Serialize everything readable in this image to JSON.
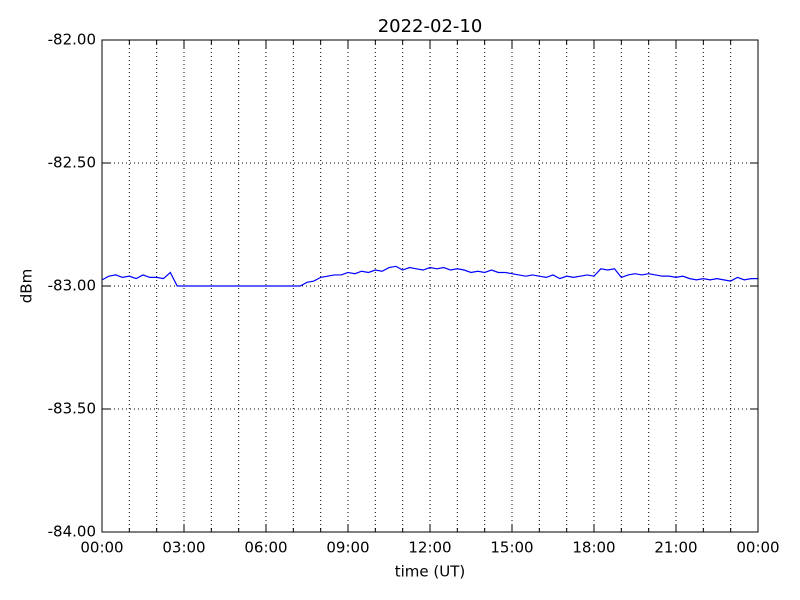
{
  "chart_data": {
    "type": "line",
    "title": "2022-02-10",
    "xlabel": "time (UT)",
    "ylabel": "dBm",
    "xlim": [
      0,
      24
    ],
    "ylim": [
      -84,
      -82
    ],
    "xticks": [
      {
        "value": 0,
        "label": "00:00"
      },
      {
        "value": 3,
        "label": "03:00"
      },
      {
        "value": 6,
        "label": "06:00"
      },
      {
        "value": 9,
        "label": "09:00"
      },
      {
        "value": 12,
        "label": "12:00"
      },
      {
        "value": 15,
        "label": "15:00"
      },
      {
        "value": 18,
        "label": "18:00"
      },
      {
        "value": 21,
        "label": "21:00"
      },
      {
        "value": 24,
        "label": "00:00"
      }
    ],
    "x_minor_ticks": [
      1,
      2,
      4,
      5,
      7,
      8,
      10,
      11,
      13,
      14,
      16,
      17,
      19,
      20,
      22,
      23
    ],
    "yticks": [
      {
        "value": -84,
        "label": "-84.00"
      },
      {
        "value": -83.5,
        "label": "-83.50"
      },
      {
        "value": -83,
        "label": "-83.00"
      },
      {
        "value": -82.5,
        "label": "-82.50"
      },
      {
        "value": -82,
        "label": "-82.00"
      }
    ],
    "grid": true,
    "series": [
      {
        "color": "#0000ff",
        "x": [
          0,
          0.25,
          0.5,
          0.75,
          1,
          1.25,
          1.5,
          1.75,
          2,
          2.25,
          2.5,
          2.75,
          3,
          3.25,
          3.5,
          3.75,
          4,
          4.25,
          4.5,
          4.75,
          5,
          5.25,
          5.5,
          5.75,
          6,
          6.25,
          6.5,
          6.75,
          7,
          7.25,
          7.5,
          7.75,
          8,
          8.25,
          8.5,
          8.75,
          9,
          9.25,
          9.5,
          9.75,
          10,
          10.25,
          10.5,
          10.75,
          11,
          11.25,
          11.5,
          11.75,
          12,
          12.25,
          12.5,
          12.75,
          13,
          13.25,
          13.5,
          13.75,
          14,
          14.25,
          14.5,
          14.75,
          15,
          15.25,
          15.5,
          15.75,
          16,
          16.25,
          16.5,
          16.75,
          17,
          17.25,
          17.5,
          17.75,
          18,
          18.25,
          18.5,
          18.75,
          19,
          19.25,
          19.5,
          19.75,
          20,
          20.25,
          20.5,
          20.75,
          21,
          21.25,
          21.5,
          21.75,
          22,
          22.25,
          22.5,
          22.75,
          23,
          23.25,
          23.5,
          23.75,
          24
        ],
        "values": [
          -82.975,
          -82.96,
          -82.955,
          -82.965,
          -82.96,
          -82.97,
          -82.955,
          -82.965,
          -82.965,
          -82.97,
          -82.945,
          -83.0,
          -83.0,
          -83.0,
          -83.0,
          -83.0,
          -83.0,
          -83.0,
          -83.0,
          -83.0,
          -83.0,
          -83.0,
          -83.0,
          -83.0,
          -83.0,
          -83.0,
          -83.0,
          -83.0,
          -83.0,
          -83.0,
          -82.985,
          -82.98,
          -82.965,
          -82.96,
          -82.955,
          -82.955,
          -82.945,
          -82.95,
          -82.94,
          -82.945,
          -82.935,
          -82.94,
          -82.925,
          -82.92,
          -82.935,
          -82.925,
          -82.93,
          -82.935,
          -82.925,
          -82.93,
          -82.925,
          -82.935,
          -82.93,
          -82.935,
          -82.945,
          -82.94,
          -82.945,
          -82.935,
          -82.945,
          -82.945,
          -82.95,
          -82.955,
          -82.96,
          -82.955,
          -82.96,
          -82.965,
          -82.955,
          -82.97,
          -82.96,
          -82.965,
          -82.96,
          -82.955,
          -82.96,
          -82.93,
          -82.935,
          -82.93,
          -82.965,
          -82.955,
          -82.95,
          -82.955,
          -82.95,
          -82.955,
          -82.96,
          -82.96,
          -82.965,
          -82.96,
          -82.97,
          -82.975,
          -82.97,
          -82.975,
          -82.97,
          -82.975,
          -82.98,
          -82.965,
          -82.975,
          -82.97,
          -82.97
        ]
      }
    ]
  }
}
